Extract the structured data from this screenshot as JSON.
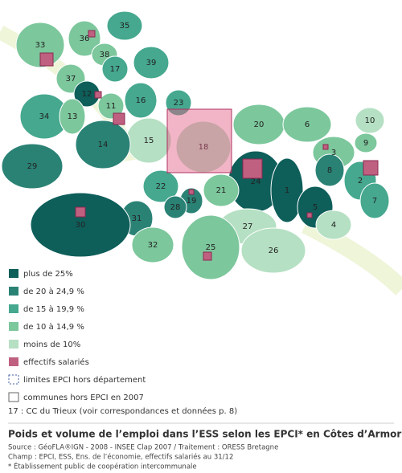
{
  "map": {
    "regions": [
      "33",
      "36",
      "35",
      "38",
      "39",
      "17",
      "37",
      "12",
      "16",
      "11",
      "23",
      "34",
      "13",
      "20",
      "6",
      "10",
      "15",
      "18",
      "9",
      "3",
      "14",
      "29",
      "8",
      "2",
      "24",
      "1",
      "22",
      "7",
      "19",
      "21",
      "28",
      "5",
      "31",
      "27",
      "4",
      "30",
      "32",
      "25",
      "26"
    ]
  },
  "legend": [
    "plus de 25%",
    "de 20 à 24,9 %",
    "de 15 à 19,9 %",
    "de 10 à 14,9 %",
    "moins de 10%",
    "effectifs salariés",
    "limites EPCI hors département",
    "communes hors EPCI en 2007"
  ],
  "note": "17 : CC du Trieux (voir correspondances et données p. 8)",
  "title": "Poids et volume de l’emploi dans l’ESS selon les EPCI* en Côtes d’Armor",
  "source": [
    "Source : GéoFLA®IGN - 2008 - INSEE Clap 2007 / Traitement : ORESS Bretagne",
    "Champ :  EPCI, ESS, Ens. de l’économie, effectifs salariés au 31/12",
    "* Établissement public de coopération intercommunale"
  ]
}
